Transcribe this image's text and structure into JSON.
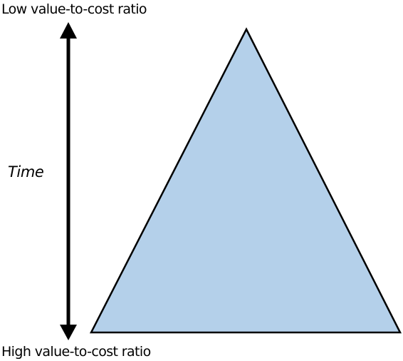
{
  "labels": {
    "top": "Low value-to-cost ratio",
    "bottom": "High value-to-cost ratio",
    "axis": "Time"
  },
  "colors": {
    "triangle_fill": "#b4d0ea",
    "stroke": "#000000",
    "text": "#000000"
  },
  "arrow": {
    "direction": "bidirectional-vertical"
  },
  "shape": {
    "type": "triangle"
  }
}
